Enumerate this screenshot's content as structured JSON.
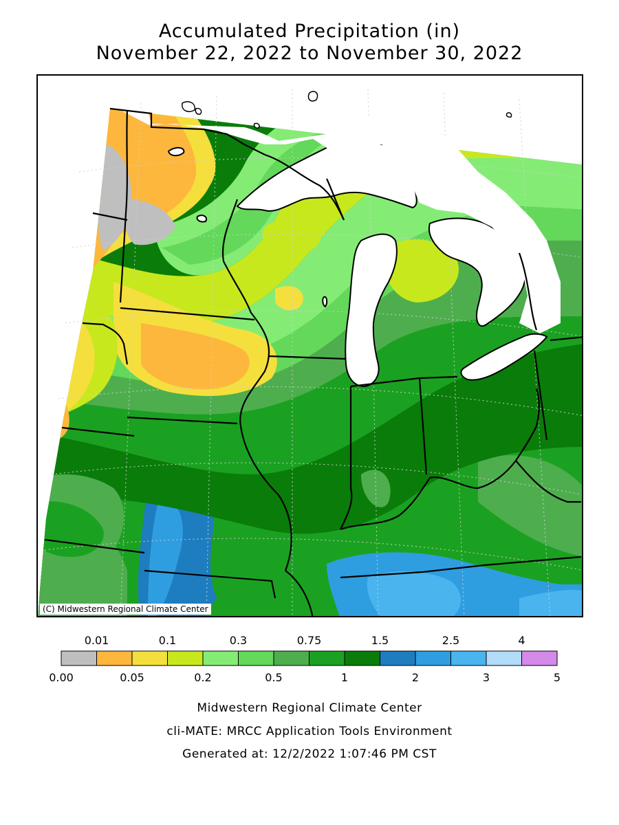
{
  "title": {
    "line1": "Accumulated Precipitation (in)",
    "line2": "November 22, 2022 to November 30, 2022"
  },
  "map": {
    "copyright": "(C) Midwestern Regional Climate Center"
  },
  "legend": {
    "top_labels": [
      "0.01",
      "0.1",
      "0.3",
      "0.75",
      "1.5",
      "2.5",
      "4"
    ],
    "bottom_labels": [
      "0.00",
      "0.05",
      "0.2",
      "0.5",
      "1",
      "2",
      "3",
      "5"
    ],
    "colors": [
      "#bfbfbf",
      "#fdb73d",
      "#f4df3d",
      "#c8e81e",
      "#84ec75",
      "#63d85a",
      "#4eae4e",
      "#1ba121",
      "#0a7c0a",
      "#1e7dbf",
      "#2e9ee0",
      "#49b4ee",
      "#b2dcf9",
      "#d38ae8"
    ]
  },
  "footer": {
    "line1": "Midwestern Regional Climate Center",
    "line2": "cli-MATE: MRCC Application Tools Environment",
    "line3": "Generated at: 12/2/2022 1:07:46 PM CST"
  }
}
